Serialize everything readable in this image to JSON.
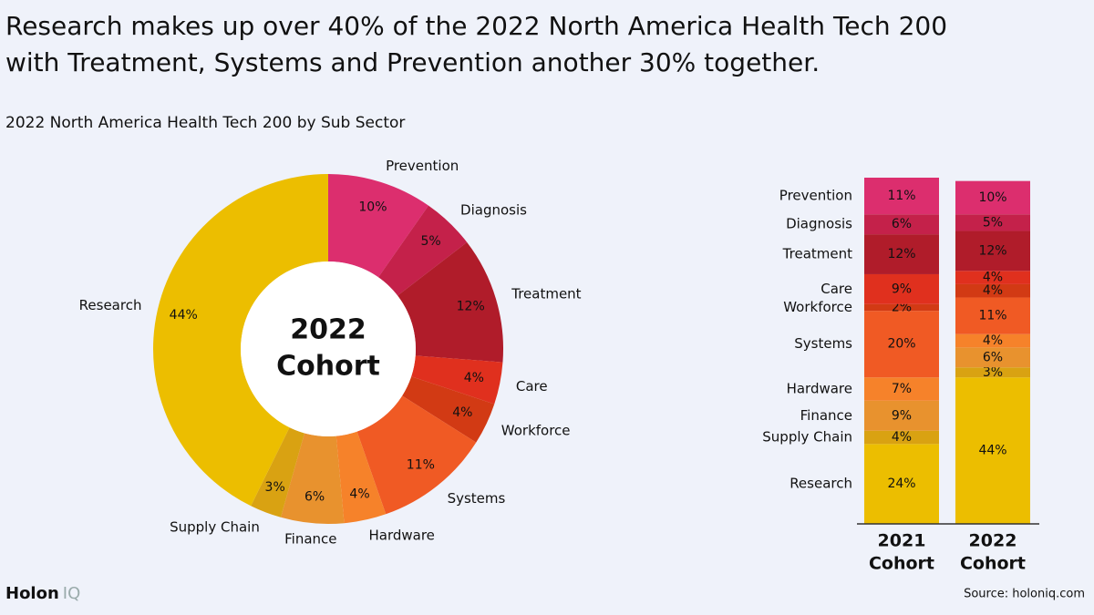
{
  "header": {
    "title": [
      "Research makes up over 40% of the 2022 North America Health Tech 200",
      "with Treatment, Systems and Prevention another 30% together."
    ],
    "subtitle": "2022 North America Health Tech 200 by Sub Sector"
  },
  "footer": {
    "logo": [
      "Holon",
      "IQ"
    ],
    "source": "Source: holoniq.com"
  },
  "chart_data": [
    {
      "type": "pie",
      "donut": true,
      "center_label": [
        "2022",
        "Cohort"
      ],
      "categories": [
        "Prevention",
        "Diagnosis",
        "Treatment",
        "Care",
        "Workforce",
        "Systems",
        "Hardware",
        "Finance",
        "Supply Chain",
        "Research"
      ],
      "values": [
        10,
        5,
        12,
        4,
        4,
        11,
        4,
        6,
        3,
        44
      ],
      "value_labels": [
        "10%",
        "5%",
        "12%",
        "4%",
        "4%",
        "11%",
        "4%",
        "6%",
        "3%",
        "44%"
      ],
      "colors": [
        "#dc2e6e",
        "#c4214a",
        "#b01c2a",
        "#e0301e",
        "#d23a14",
        "#f05a24",
        "#f6822a",
        "#e8922e",
        "#d9a212",
        "#ecbe00"
      ]
    },
    {
      "type": "stacked_bar",
      "categories": [
        [
          "2021",
          "Cohort"
        ],
        [
          "2022",
          "Cohort"
        ]
      ],
      "series": [
        {
          "name": "Research",
          "color": "#ecbe00",
          "values": [
            24,
            44
          ],
          "value_labels": [
            "24%",
            "44%"
          ]
        },
        {
          "name": "Supply Chain",
          "color": "#d9a212",
          "values": [
            4,
            3
          ],
          "value_labels": [
            "4%",
            "3%"
          ]
        },
        {
          "name": "Finance",
          "color": "#e8922e",
          "values": [
            9,
            6
          ],
          "value_labels": [
            "9%",
            "6%"
          ]
        },
        {
          "name": "Hardware",
          "color": "#f6822a",
          "values": [
            7,
            4
          ],
          "value_labels": [
            "7%",
            "4%"
          ]
        },
        {
          "name": "Systems",
          "color": "#f05a24",
          "values": [
            20,
            11
          ],
          "value_labels": [
            "20%",
            "11%"
          ]
        },
        {
          "name": "Workforce",
          "color": "#d23a14",
          "values": [
            2,
            4
          ],
          "value_labels": [
            "2%",
            "4%"
          ]
        },
        {
          "name": "Care",
          "color": "#e0301e",
          "values": [
            9,
            4
          ],
          "value_labels": [
            "9%",
            "4%"
          ]
        },
        {
          "name": "Treatment",
          "color": "#b01c2a",
          "values": [
            12,
            12
          ],
          "value_labels": [
            "12%",
            "12%"
          ]
        },
        {
          "name": "Diagnosis",
          "color": "#c4214a",
          "values": [
            6,
            5
          ],
          "value_labels": [
            "6%",
            "5%"
          ]
        },
        {
          "name": "Prevention",
          "color": "#dc2e6e",
          "values": [
            11,
            10
          ],
          "value_labels": [
            "11%",
            "10%"
          ]
        }
      ]
    }
  ]
}
